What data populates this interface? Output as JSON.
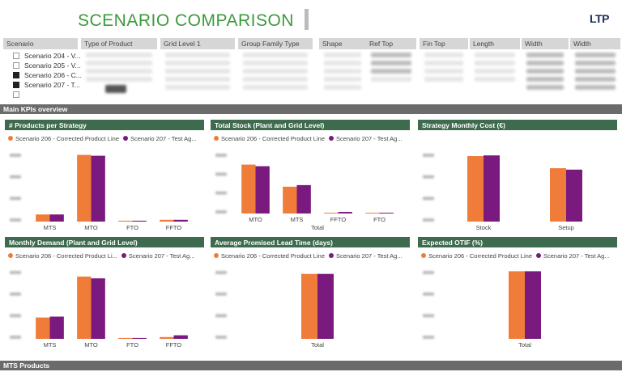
{
  "header": {
    "title": "SCENARIO COMPARISON",
    "logo_text": "LTP"
  },
  "filters": {
    "columns": [
      {
        "label": "Scenario"
      },
      {
        "label": "Type of Product"
      },
      {
        "label": "Grid Level 1"
      },
      {
        "label": "Group Family Type"
      },
      {
        "label": "Shape"
      },
      {
        "label": "Ref Top"
      },
      {
        "label": "Fin Top"
      },
      {
        "label": "Length"
      },
      {
        "label": "Width"
      },
      {
        "label": "Width"
      }
    ],
    "scenarios": [
      {
        "label": "Scenario 204 - V...",
        "checked": false
      },
      {
        "label": "Scenario 205 - V...",
        "checked": false
      },
      {
        "label": "Scenario 206 - C...",
        "checked": true
      },
      {
        "label": "Scenario 207 - T...",
        "checked": true
      },
      {
        "label": "",
        "checked": false
      }
    ]
  },
  "sections": {
    "main_kpis": "Main KPIs overview",
    "mts_products": "MTS Products"
  },
  "colors": {
    "series_a": "#f07c3a",
    "series_b": "#7a1a7f",
    "panel_header": "#3e6b4e"
  },
  "panels": [
    {
      "title": "# Products per Strategy",
      "legend": [
        "Scenario 206 - Corrected Product Line",
        "Scenario 207 - Test Ag..."
      ],
      "chart_data": {
        "type": "bar",
        "categories": [
          "MTS",
          "MTO",
          "FTO",
          "FFTO"
        ],
        "series": [
          {
            "name": "Scenario 206 - Corrected Product Line",
            "values": [
              8,
              75,
              1,
              2
            ]
          },
          {
            "name": "Scenario 207 - Test Ag...",
            "values": [
              8,
              74,
              1,
              2
            ]
          }
        ],
        "xlabel": "",
        "ylim": [
          0,
          80
        ]
      }
    },
    {
      "title": "Total Stock (Plant and Grid Level)",
      "legend": [
        "Scenario 206 - Corrected Product Line",
        "Scenario 207 - Test Ag..."
      ],
      "chart_data": {
        "type": "bar",
        "categories": [
          "MTO",
          "MTS",
          "FFTO",
          "FTO"
        ],
        "series": [
          {
            "name": "Scenario 206 - Corrected Product Line",
            "values": [
              62,
              34,
              1,
              1
            ]
          },
          {
            "name": "Scenario 207 - Test Ag...",
            "values": [
              60,
              36,
              2,
              1
            ]
          }
        ],
        "xlabel": "Total",
        "ylim": [
          0,
          80
        ]
      }
    },
    {
      "title": "Strategy Monthly Cost (€)",
      "legend": [],
      "chart_data": {
        "type": "bar",
        "categories": [
          "Stock",
          "Setup"
        ],
        "series": [
          {
            "name": "",
            "values": [
              92,
              75
            ]
          },
          {
            "name": "",
            "values": [
              93,
              73
            ]
          }
        ],
        "xlabel": "",
        "ylim": [
          0,
          100
        ]
      }
    },
    {
      "title": "Monthly Demand (Plant and Grid Level)",
      "legend": [
        "Scenario 206 - Corrected Product Li...",
        "Scenario 207 - Test Ag..."
      ],
      "chart_data": {
        "type": "bar",
        "categories": [
          "MTS",
          "MTO",
          "FTO",
          "FFTO"
        ],
        "series": [
          {
            "name": "Scenario 206 - Corrected Product Li...",
            "values": [
              24,
              70,
              1,
              2
            ]
          },
          {
            "name": "Scenario 207 - Test Ag...",
            "values": [
              25,
              68,
              1,
              4
            ]
          }
        ],
        "xlabel": "",
        "ylim": [
          0,
          80
        ]
      }
    },
    {
      "title": "Average Promised Lead Time (days)",
      "legend": [
        "Scenario 206 - Corrected Product Line",
        "Scenario 207 - Test Ag..."
      ],
      "chart_data": {
        "type": "bar",
        "categories": [
          "Total"
        ],
        "series": [
          {
            "name": "Scenario 206 - Corrected Product Line",
            "values": [
              73
            ]
          },
          {
            "name": "Scenario 207 - Test Ag...",
            "values": [
              73
            ]
          }
        ],
        "xlabel": "",
        "ylim": [
          0,
          80
        ]
      }
    },
    {
      "title": "Expected OTIF (%)",
      "legend": [
        "Scenario 206 - Corrected Product Line",
        "Scenario 207 - Test Ag..."
      ],
      "chart_data": {
        "type": "bar",
        "categories": [
          "Total"
        ],
        "series": [
          {
            "name": "Scenario 206 - Corrected Product Line",
            "values": [
              76
            ]
          },
          {
            "name": "Scenario 207 - Test Ag...",
            "values": [
              76
            ]
          }
        ],
        "xlabel": "",
        "ylim": [
          0,
          80
        ]
      }
    }
  ]
}
